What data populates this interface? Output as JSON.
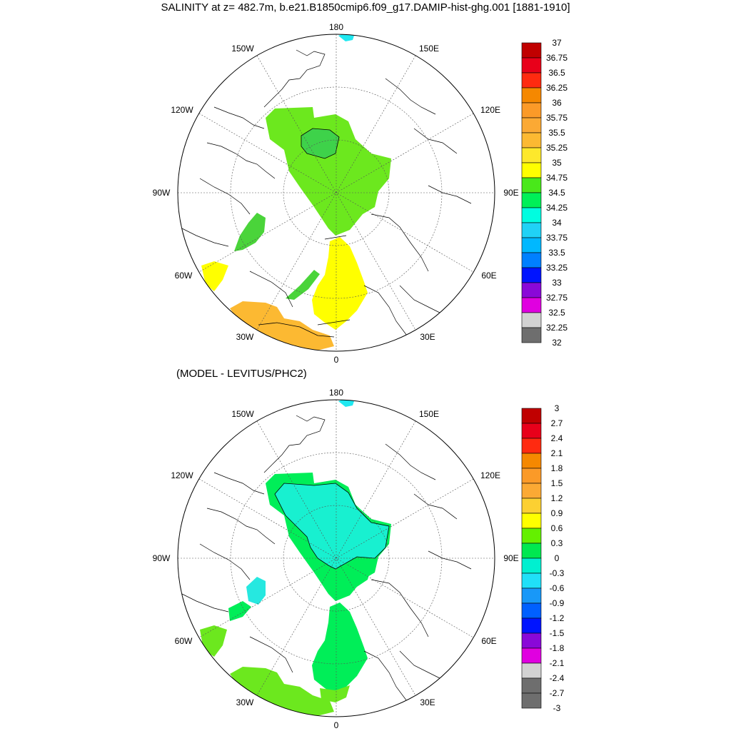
{
  "title": "SALINITY at z= 482.7m, b.e21.B1850cmip6.f09_g17.DAMIP-hist-ghg.001 [1881-1910]",
  "subtitle": "(MODEL - LEVITUS/PHC2)",
  "longitude_labels": {
    "lon_180": "180",
    "lon_150W": "150W",
    "lon_150E": "150E",
    "lon_120W": "120W",
    "lon_120E": "120E",
    "lon_90W": "90W",
    "lon_90E": "90E",
    "lon_60W": "60W",
    "lon_60E": "60E",
    "lon_30W": "30W",
    "lon_30E": "30E",
    "lon_0": "0"
  },
  "colorbar_top": {
    "labels": [
      "37",
      "36.75",
      "36.5",
      "36.25",
      "36",
      "35.75",
      "35.5",
      "35.25",
      "35",
      "34.75",
      "34.5",
      "34.25",
      "34",
      "33.75",
      "33.5",
      "33.25",
      "33",
      "32.75",
      "32.5",
      "32.25",
      "32"
    ],
    "colors": [
      "#c00000",
      "#e8001a",
      "#ff2a10",
      "#f58800",
      "#fb9a28",
      "#fba934",
      "#fcb932",
      "#fde82c",
      "#ffff00",
      "#49e81a",
      "#00f058",
      "#00fde0",
      "#20d2f6",
      "#00b8ff",
      "#0080ff",
      "#0014ff",
      "#8a08d8",
      "#e000e0",
      "#d2d2d2",
      "#6e6e6e"
    ]
  },
  "colorbar_bottom": {
    "labels": [
      "3",
      "2.7",
      "2.4",
      "2.1",
      "1.8",
      "1.5",
      "1.2",
      "0.9",
      "0.6",
      "0.3",
      "0",
      "-0.3",
      "-0.6",
      "-0.9",
      "-1.2",
      "-1.5",
      "-1.8",
      "-2.1",
      "-2.4",
      "-2.7",
      "-3"
    ],
    "colors": [
      "#c00000",
      "#e8001a",
      "#ff2a10",
      "#f58800",
      "#fb9a28",
      "#fba934",
      "#fcd032",
      "#ffff00",
      "#64f000",
      "#00e850",
      "#00f0d0",
      "#20e0f8",
      "#1898f8",
      "#0060ff",
      "#0014ff",
      "#8a08d8",
      "#e000e0",
      "#d2d2d2",
      "#6e6e6e",
      "#6e6e6e"
    ]
  },
  "map_colors": {
    "top_arctic": "#6ce81e",
    "top_arctic_core": "#3ed24a",
    "top_nordic": "#ffff00",
    "top_atlantic": "#fcb932",
    "top_baffin": "#4ad43a",
    "bottom_arctic": "#18f0d0",
    "bottom_arctic_rim": "#00ee58",
    "bottom_nordic": "#00ee58",
    "bottom_atlantic": "#6ce81e",
    "bottom_baffin": "#26e8e0",
    "bering": "#20e8f0"
  }
}
